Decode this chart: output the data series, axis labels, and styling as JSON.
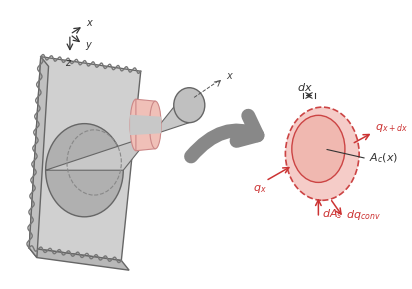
{
  "bg_color": "#ffffff",
  "wall_face_color": "#d0d0d0",
  "wall_top_color": "#b8b8b8",
  "wall_side_color": "#c0c0c0",
  "wall_edge_color": "#666666",
  "tube_body_color": "#c8c8c8",
  "tube_highlight": "#e0e0e0",
  "tube_shadow": "#999999",
  "tube_edge_color": "#666666",
  "hole_color": "#888888",
  "fin_color": "#f0c0b8",
  "fin_edge": "#cc8888",
  "ellipse_fill": "#f5ccc8",
  "ellipse_edge": "#cc4444",
  "arrow_color": "#cc3333",
  "coord_color": "#333333",
  "big_arrow_fill": "#888888",
  "big_arrow_edge": "#555555",
  "label_color": "#cc3333",
  "black_label": "#333333",
  "label_fontsize": 8,
  "small_fontsize": 7
}
